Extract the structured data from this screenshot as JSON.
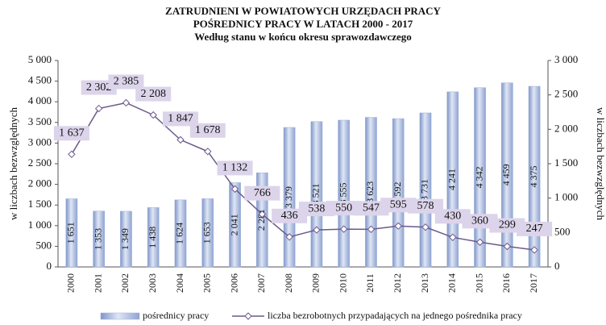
{
  "chart_data": {
    "type": "bar",
    "title": [
      "ZATRUDNIENI  W  POWIATOWYCH  URZĘDACH  PRACY",
      "POŚREDNICY  PRACY W  LATACH  2000  -  2017"
    ],
    "subtitle": "Według  stanu  w  końcu  okresu  sprawozdawczego",
    "y_label": "w liczbach bezwzględnych",
    "y2_label": "w liczbach bezwzględnych",
    "categories": [
      "2000",
      "2001",
      "2002",
      "2003",
      "2004",
      "2005",
      "2006",
      "2007",
      "2008",
      "2009",
      "2010",
      "2011",
      "2012",
      "2013",
      "2014",
      "2015",
      "2016",
      "2017"
    ],
    "series": [
      {
        "name": "pośrednicy pracy",
        "type": "bar",
        "color": "#9fb2da",
        "values": [
          1651,
          1353,
          1349,
          1438,
          1624,
          1653,
          2041,
          2281,
          3379,
          3521,
          3555,
          3623,
          3592,
          3731,
          4241,
          4342,
          4459,
          4375
        ],
        "value_labels": [
          "1 651",
          "1 353",
          "1 349",
          "1 438",
          "1 624",
          "1 653",
          "2 041",
          "2 281",
          "3 379",
          "3 521",
          "3 555",
          "3 623",
          "3 592",
          "3 731",
          "4 241",
          "4 342",
          "4 459",
          "4 375"
        ]
      },
      {
        "name": "liczba bezrobotnych przypadających na jednego pośrednika pracy",
        "type": "line",
        "axis": "y2",
        "color": "#6a5a8c",
        "values": [
          1637,
          2302,
          2385,
          2208,
          1847,
          1678,
          1132,
          766,
          436,
          538,
          550,
          547,
          595,
          578,
          430,
          360,
          299,
          247
        ],
        "value_labels": [
          "1 637",
          "2 302",
          "2 385",
          "2 208",
          "1 847",
          "1 678",
          "1 132",
          "766",
          "436",
          "538",
          "550",
          "547",
          "595",
          "578",
          "430",
          "360",
          "299",
          "247"
        ]
      }
    ],
    "ylim": [
      0,
      5000
    ],
    "yticks": [
      0,
      500,
      {
        "value": 1000,
        "label": "1 000"
      },
      {
        "value": 1500,
        "label": "1 500"
      },
      {
        "value": 2000,
        "label": "2 000"
      },
      {
        "value": 2500,
        "label": "2 500"
      },
      {
        "value": 3000,
        "label": "3 000"
      },
      {
        "value": 3500,
        "label": "3 500"
      },
      {
        "value": 4000,
        "label": "4 000"
      },
      {
        "value": 4500,
        "label": "4 500"
      },
      {
        "value": 5000,
        "label": "5 000"
      }
    ],
    "y2lim": [
      0,
      3000
    ],
    "y2ticks": [
      0,
      500,
      {
        "value": 1000,
        "label": "1 000"
      },
      {
        "value": 1500,
        "label": "1 500"
      },
      {
        "value": 2000,
        "label": "2 000"
      },
      {
        "value": 2500,
        "label": "2 500"
      },
      {
        "value": 3000,
        "label": "3 000"
      }
    ],
    "legend": "bottom"
  }
}
